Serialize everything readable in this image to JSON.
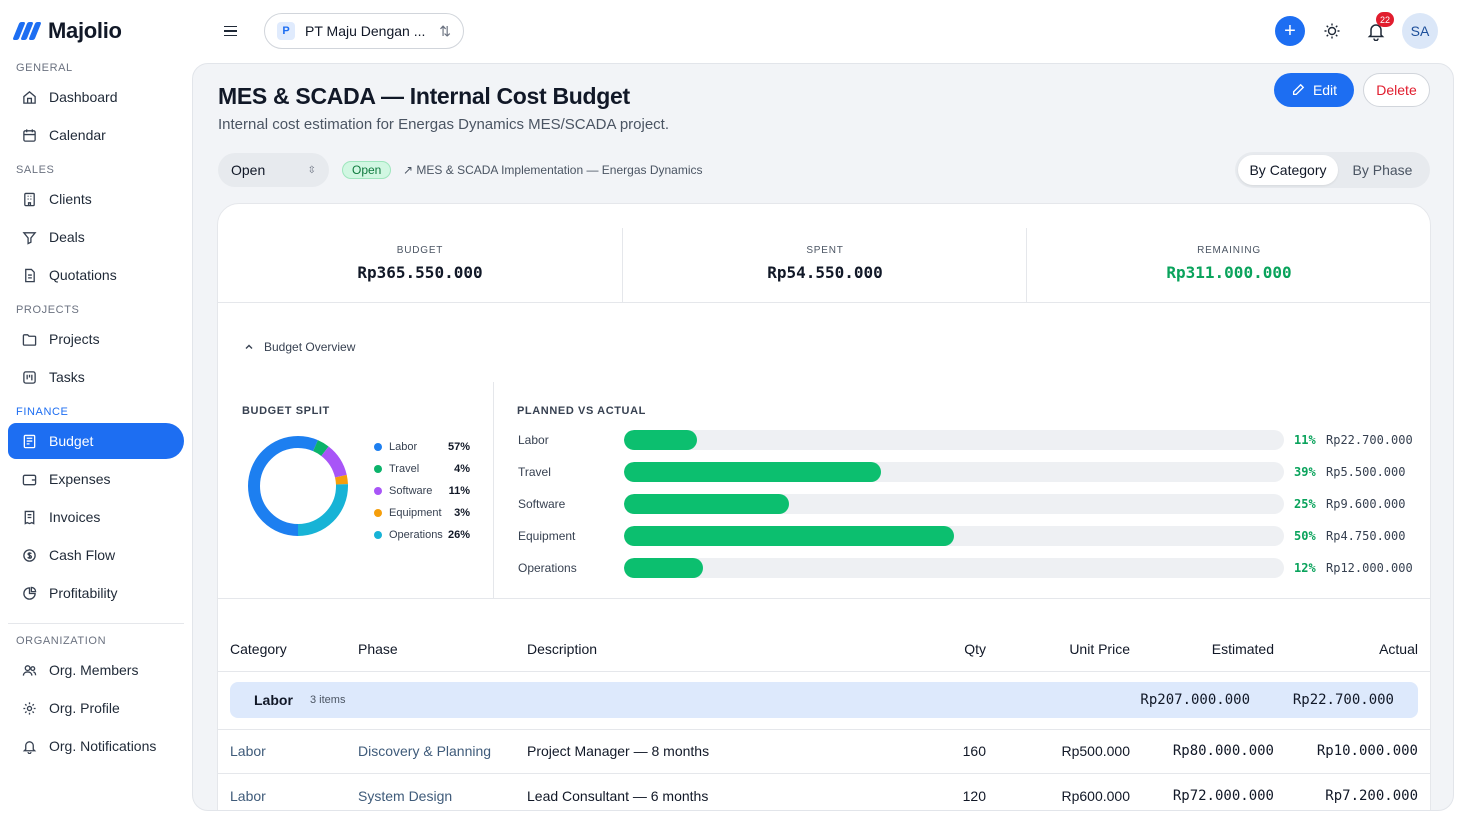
{
  "brand": {
    "name": "Majolio"
  },
  "sidebar": {
    "sections": {
      "general": "GENERAL",
      "sales": "SALES",
      "projects": "PROJECTS",
      "finance": "FINANCE",
      "organization": "ORGANIZATION"
    },
    "items": {
      "dashboard": "Dashboard",
      "calendar": "Calendar",
      "clients": "Clients",
      "deals": "Deals",
      "quotations": "Quotations",
      "projects": "Projects",
      "tasks": "Tasks",
      "budget": "Budget",
      "expenses": "Expenses",
      "invoices": "Invoices",
      "cashflow": "Cash Flow",
      "profitability": "Profitability",
      "members": "Org. Members",
      "profile": "Org. Profile",
      "notifications": "Org. Notifications"
    }
  },
  "topbar": {
    "org_initial": "P",
    "org_name": "PT Maju Dengan ...",
    "notification_count": "22",
    "avatar_initials": "SA",
    "accent": "#1d6ef2"
  },
  "page": {
    "title": "MES & SCADA — Internal Cost Budget",
    "subtitle": "Internal cost estimation for Energas Dynamics MES/SCADA project.",
    "edit_label": "Edit",
    "delete_label": "Delete",
    "status_value": "Open",
    "status_badge": "Open",
    "project_link": "↗ MES & SCADA Implementation — Energas Dynamics",
    "view_category": "By Category",
    "view_phase": "By Phase"
  },
  "stats": {
    "budget_label": "BUDGET",
    "budget_value": "Rp365.550.000",
    "spent_label": "SPENT",
    "spent_value": "Rp54.550.000",
    "remaining_label": "REMAINING",
    "remaining_value": "Rp311.000.000"
  },
  "overview": {
    "toggle_label": "Budget Overview",
    "split_title": "BUDGET SPLIT",
    "pva_title": "PLANNED VS ACTUAL"
  },
  "chart_data": [
    {
      "type": "pie",
      "title": "BUDGET SPLIT",
      "categories": [
        "Labor",
        "Travel",
        "Software",
        "Equipment",
        "Operations"
      ],
      "values": [
        57,
        4,
        11,
        3,
        26
      ],
      "labels": [
        "57%",
        "4%",
        "11%",
        "3%",
        "26%"
      ],
      "colors": [
        "#1d7ff0",
        "#0bb36b",
        "#a855f7",
        "#f59e0b",
        "#17b3d6"
      ]
    },
    {
      "type": "bar",
      "title": "PLANNED VS ACTUAL",
      "categories": [
        "Labor",
        "Travel",
        "Software",
        "Equipment",
        "Operations"
      ],
      "values": [
        11,
        39,
        25,
        50,
        12
      ],
      "pct_labels": [
        "11%",
        "39%",
        "25%",
        "50%",
        "12%"
      ],
      "amount_labels": [
        "Rp22.700.000",
        "Rp5.500.000",
        "Rp9.600.000",
        "Rp4.750.000",
        "Rp12.000.000"
      ],
      "ylim": [
        0,
        100
      ]
    }
  ],
  "table": {
    "headers": {
      "category": "Category",
      "phase": "Phase",
      "description": "Description",
      "qty": "Qty",
      "unit_price": "Unit Price",
      "estimated": "Estimated",
      "actual": "Actual"
    },
    "group": {
      "name": "Labor",
      "count": "3 items",
      "estimated": "Rp207.000.000",
      "actual": "Rp22.700.000"
    },
    "rows": [
      {
        "category": "Labor",
        "phase": "Discovery & Planning",
        "description": "Project Manager — 8 months",
        "qty": "160",
        "unit_price": "Rp500.000",
        "estimated": "Rp80.000.000",
        "actual": "Rp10.000.000"
      },
      {
        "category": "Labor",
        "phase": "System Design",
        "description": "Lead Consultant — 6 months",
        "qty": "120",
        "unit_price": "Rp600.000",
        "estimated": "Rp72.000.000",
        "actual": "Rp7.200.000"
      }
    ]
  }
}
